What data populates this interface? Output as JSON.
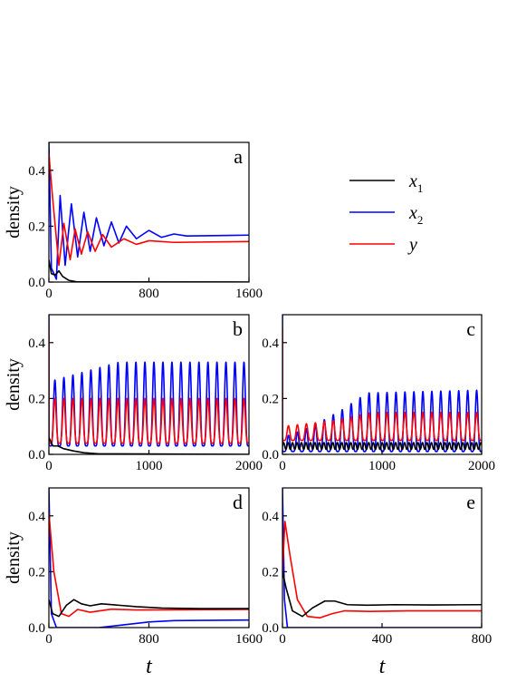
{
  "colors": {
    "x1": "#000000",
    "x2": "#0000ff",
    "y": "#ff0000"
  },
  "legend": {
    "entries": [
      {
        "key": "x1",
        "base": "x",
        "sub": "1"
      },
      {
        "key": "x2",
        "base": "x",
        "sub": "2"
      },
      {
        "key": "y",
        "base": "y",
        "sub": ""
      }
    ]
  },
  "chart_data": [
    {
      "panel": "a",
      "type": "line",
      "xlabel": "",
      "ylabel": "density",
      "xlim": [
        0,
        1600
      ],
      "ylim": [
        0,
        0.5
      ],
      "xticks": [
        0,
        800,
        1600
      ],
      "xtick_labels": [
        "0",
        "800",
        "1600"
      ],
      "yticks": [
        0,
        0.2,
        0.4
      ],
      "ytick_labels": [
        "0.0",
        "0.2",
        "0.4"
      ],
      "series": [
        {
          "name": "x1",
          "values": [
            [
              0,
              0.08
            ],
            [
              20,
              0.03
            ],
            [
              50,
              0.025
            ],
            [
              80,
              0.04
            ],
            [
              110,
              0.02
            ],
            [
              160,
              0.006
            ],
            [
              220,
              0.001
            ],
            [
              1600,
              0.0
            ]
          ]
        },
        {
          "name": "x2",
          "values": [
            [
              0,
              0.5
            ],
            [
              20,
              0.05
            ],
            [
              60,
              0.01
            ],
            [
              90,
              0.31
            ],
            [
              130,
              0.06
            ],
            [
              180,
              0.28
            ],
            [
              230,
              0.09
            ],
            [
              280,
              0.25
            ],
            [
              330,
              0.11
            ],
            [
              380,
              0.23
            ],
            [
              440,
              0.13
            ],
            [
              500,
              0.215
            ],
            [
              560,
              0.14
            ],
            [
              620,
              0.2
            ],
            [
              700,
              0.155
            ],
            [
              800,
              0.185
            ],
            [
              900,
              0.16
            ],
            [
              1000,
              0.172
            ],
            [
              1100,
              0.165
            ],
            [
              1600,
              0.168
            ]
          ]
        },
        {
          "name": "y",
          "values": [
            [
              0,
              0.46
            ],
            [
              30,
              0.3
            ],
            [
              80,
              0.06
            ],
            [
              120,
              0.21
            ],
            [
              170,
              0.08
            ],
            [
              210,
              0.19
            ],
            [
              260,
              0.1
            ],
            [
              310,
              0.18
            ],
            [
              370,
              0.11
            ],
            [
              430,
              0.17
            ],
            [
              500,
              0.125
            ],
            [
              600,
              0.155
            ],
            [
              700,
              0.135
            ],
            [
              800,
              0.148
            ],
            [
              1000,
              0.142
            ],
            [
              1600,
              0.145
            ]
          ]
        }
      ]
    },
    {
      "panel": "b",
      "type": "line",
      "xlabel": "",
      "ylabel": "density",
      "xlim": [
        0,
        2000
      ],
      "ylim": [
        0,
        0.5
      ],
      "xticks": [
        0,
        1000,
        2000
      ],
      "xtick_labels": [
        "0",
        "1000",
        "2000"
      ],
      "yticks": [
        0,
        0.2,
        0.4
      ],
      "ytick_labels": [
        "0.0",
        "0.2",
        "0.4"
      ],
      "period": 90,
      "series": [
        {
          "name": "x1",
          "values": [
            [
              0,
              0.06
            ],
            [
              40,
              0.03
            ],
            [
              90,
              0.03
            ],
            [
              150,
              0.02
            ],
            [
              250,
              0.012
            ],
            [
              350,
              0.006
            ],
            [
              500,
              0.002
            ],
            [
              2000,
              0.0
            ]
          ]
        },
        {
          "name": "x2",
          "envelope": {
            "trough": 0.03,
            "peak": [
              [
                0,
                0.26
              ],
              [
                400,
                0.3
              ],
              [
                700,
                0.33
              ],
              [
                2000,
                0.33
              ]
            ]
          }
        },
        {
          "name": "y",
          "envelope": {
            "trough": 0.04,
            "peak": [
              [
                0,
                0.2
              ],
              [
                2000,
                0.2
              ]
            ]
          }
        }
      ]
    },
    {
      "panel": "c",
      "type": "line",
      "xlabel": "",
      "ylabel": "",
      "xlim": [
        0,
        2000
      ],
      "ylim": [
        0,
        0.5
      ],
      "xticks": [
        0,
        1000,
        2000
      ],
      "xtick_labels": [
        "0",
        "1000",
        "2000"
      ],
      "yticks": [
        0,
        0.2,
        0.4
      ],
      "ytick_labels": [
        "0.0",
        "0.2",
        "0.4"
      ],
      "period": 90,
      "series": [
        {
          "name": "x1",
          "band": {
            "level": [
              [
                0,
                0.03
              ],
              [
                2000,
                0.03
              ]
            ],
            "amp": 0.012
          }
        },
        {
          "name": "x2",
          "envelope": {
            "trough": 0.01,
            "peak": [
              [
                0,
                0.06
              ],
              [
                300,
                0.1
              ],
              [
                600,
                0.16
              ],
              [
                850,
                0.22
              ],
              [
                2000,
                0.23
              ]
            ]
          }
        },
        {
          "name": "y",
          "envelope": {
            "trough": 0.05,
            "peak": [
              [
                0,
                0.1
              ],
              [
                500,
                0.12
              ],
              [
                900,
                0.15
              ],
              [
                2000,
                0.15
              ]
            ]
          }
        }
      ]
    },
    {
      "panel": "d",
      "type": "line",
      "xlabel": "t",
      "ylabel": "density",
      "xlim": [
        0,
        1600
      ],
      "ylim": [
        0,
        0.5
      ],
      "xticks": [
        0,
        800,
        1600
      ],
      "xtick_labels": [
        "0",
        "800",
        "1600"
      ],
      "yticks": [
        0,
        0.2,
        0.4
      ],
      "ytick_labels": [
        "0.0",
        "0.2",
        "0.4"
      ],
      "series": [
        {
          "name": "x1",
          "values": [
            [
              0,
              0.1
            ],
            [
              30,
              0.05
            ],
            [
              80,
              0.04
            ],
            [
              140,
              0.08
            ],
            [
              200,
              0.1
            ],
            [
              260,
              0.085
            ],
            [
              330,
              0.078
            ],
            [
              420,
              0.085
            ],
            [
              560,
              0.08
            ],
            [
              700,
              0.075
            ],
            [
              900,
              0.07
            ],
            [
              1200,
              0.068
            ],
            [
              1600,
              0.068
            ]
          ]
        },
        {
          "name": "x2",
          "values": [
            [
              0,
              0.5
            ],
            [
              20,
              0.05
            ],
            [
              60,
              0.0
            ],
            [
              400,
              0.0
            ],
            [
              600,
              0.01
            ],
            [
              800,
              0.02
            ],
            [
              1000,
              0.025
            ],
            [
              1600,
              0.027
            ]
          ]
        },
        {
          "name": "y",
          "values": [
            [
              0,
              0.41
            ],
            [
              40,
              0.2
            ],
            [
              100,
              0.05
            ],
            [
              160,
              0.04
            ],
            [
              230,
              0.065
            ],
            [
              330,
              0.055
            ],
            [
              500,
              0.066
            ],
            [
              700,
              0.063
            ],
            [
              1600,
              0.065
            ]
          ]
        }
      ]
    },
    {
      "panel": "e",
      "type": "line",
      "xlabel": "t",
      "ylabel": "",
      "xlim": [
        0,
        800
      ],
      "ylim": [
        0,
        0.5
      ],
      "xticks": [
        0,
        400,
        800
      ],
      "xtick_labels": [
        "0",
        "400",
        "800"
      ],
      "yticks": [
        0,
        0.2,
        0.4
      ],
      "ytick_labels": [
        "0.0",
        "0.2",
        "0.4"
      ],
      "series": [
        {
          "name": "x1",
          "values": [
            [
              0,
              0.2
            ],
            [
              15,
              0.14
            ],
            [
              40,
              0.06
            ],
            [
              80,
              0.04
            ],
            [
              120,
              0.07
            ],
            [
              170,
              0.095
            ],
            [
              210,
              0.095
            ],
            [
              260,
              0.082
            ],
            [
              340,
              0.08
            ],
            [
              450,
              0.082
            ],
            [
              600,
              0.081
            ],
            [
              800,
              0.082
            ]
          ]
        },
        {
          "name": "x2",
          "values": [
            [
              0,
              0.5
            ],
            [
              8,
              0.1
            ],
            [
              20,
              0.0
            ],
            [
              800,
              0.0
            ]
          ]
        },
        {
          "name": "y",
          "values": [
            [
              0,
              0.2
            ],
            [
              10,
              0.38
            ],
            [
              30,
              0.26
            ],
            [
              60,
              0.1
            ],
            [
              100,
              0.04
            ],
            [
              150,
              0.035
            ],
            [
              200,
              0.05
            ],
            [
              250,
              0.06
            ],
            [
              350,
              0.058
            ],
            [
              500,
              0.06
            ],
            [
              800,
              0.06
            ]
          ]
        }
      ]
    }
  ]
}
